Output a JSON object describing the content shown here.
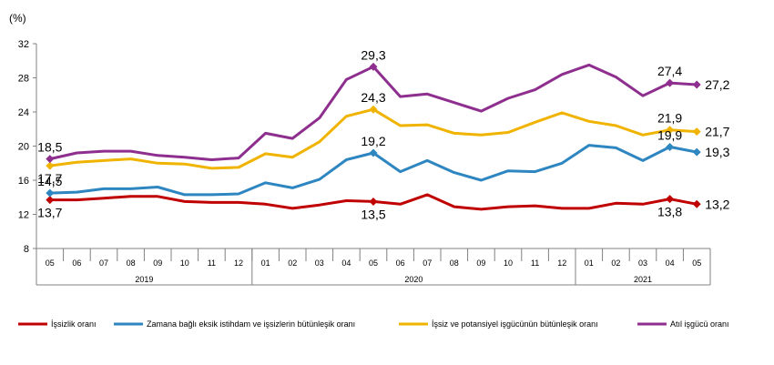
{
  "chart_data": {
    "type": "line",
    "title": "",
    "xlabel": "",
    "ylabel": "(%)",
    "ylim": [
      8,
      32
    ],
    "yticks": [
      8,
      12,
      16,
      20,
      24,
      28,
      32
    ],
    "grid": false,
    "legend_position": "bottom",
    "categories": [
      "05",
      "06",
      "07",
      "08",
      "09",
      "10",
      "11",
      "12",
      "01",
      "02",
      "03",
      "04",
      "05",
      "06",
      "07",
      "08",
      "09",
      "10",
      "11",
      "12",
      "01",
      "02",
      "03",
      "04",
      "05"
    ],
    "year_groups": [
      {
        "label": "2019",
        "start": 0,
        "end": 7
      },
      {
        "label": "2020",
        "start": 8,
        "end": 19
      },
      {
        "label": "2021",
        "start": 20,
        "end": 24
      }
    ],
    "series": [
      {
        "name": "İşsizlik oranı",
        "color": "#c00000",
        "values": [
          13.7,
          13.7,
          13.9,
          14.1,
          14.1,
          13.5,
          13.4,
          13.4,
          13.2,
          12.7,
          13.1,
          13.6,
          13.5,
          13.2,
          14.3,
          12.9,
          12.6,
          12.9,
          13.0,
          12.7,
          12.7,
          13.3,
          13.2,
          13.8,
          13.2
        ],
        "labels": [
          {
            "index": 0,
            "text": "13,7",
            "pos": "below"
          },
          {
            "index": 12,
            "text": "13,5",
            "pos": "below"
          },
          {
            "index": 23,
            "text": "13,8",
            "pos": "below"
          },
          {
            "index": 24,
            "text": "13,2",
            "pos": "right"
          }
        ]
      },
      {
        "name": "Zamana bağlı eksik istihdam ve işsizlerin bütünleşik oranı",
        "color": "#2e86c1",
        "values": [
          14.5,
          14.6,
          15.0,
          15.0,
          15.2,
          14.3,
          14.3,
          14.4,
          15.7,
          15.1,
          16.1,
          18.4,
          19.2,
          17.0,
          18.3,
          16.9,
          16.0,
          17.1,
          17.0,
          18.0,
          20.1,
          19.8,
          18.3,
          19.9,
          19.3
        ],
        "labels": [
          {
            "index": 0,
            "text": "14,5",
            "pos": "above"
          },
          {
            "index": 12,
            "text": "19,2",
            "pos": "above"
          },
          {
            "index": 23,
            "text": "19,9",
            "pos": "above"
          },
          {
            "index": 24,
            "text": "19,3",
            "pos": "right"
          }
        ]
      },
      {
        "name": "İşsiz ve potansiyel işgücünün bütünleşik oranı",
        "color": "#f0b400",
        "values": [
          17.7,
          18.1,
          18.3,
          18.5,
          18.0,
          17.9,
          17.4,
          17.5,
          19.1,
          18.7,
          20.5,
          23.5,
          24.3,
          22.4,
          22.5,
          21.5,
          21.3,
          21.6,
          22.8,
          23.9,
          22.9,
          22.4,
          21.3,
          21.9,
          21.7
        ],
        "labels": [
          {
            "index": 0,
            "text": "17,7",
            "pos": "below"
          },
          {
            "index": 12,
            "text": "24,3",
            "pos": "above"
          },
          {
            "index": 23,
            "text": "21,9",
            "pos": "above"
          },
          {
            "index": 24,
            "text": "21,7",
            "pos": "right"
          }
        ]
      },
      {
        "name": "Atıl işgücü oranı",
        "color": "#8e2e8e",
        "values": [
          18.5,
          19.2,
          19.4,
          19.4,
          18.9,
          18.7,
          18.4,
          18.6,
          21.5,
          20.9,
          23.3,
          27.8,
          29.3,
          25.8,
          26.1,
          25.1,
          24.1,
          25.6,
          26.6,
          28.4,
          29.5,
          28.1,
          25.9,
          27.4,
          27.2
        ],
        "labels": [
          {
            "index": 0,
            "text": "18,5",
            "pos": "above"
          },
          {
            "index": 12,
            "text": "29,3",
            "pos": "above"
          },
          {
            "index": 23,
            "text": "27,4",
            "pos": "above"
          },
          {
            "index": 24,
            "text": "27,2",
            "pos": "right"
          }
        ]
      }
    ],
    "markers_at": [
      0,
      12,
      23,
      24
    ]
  }
}
